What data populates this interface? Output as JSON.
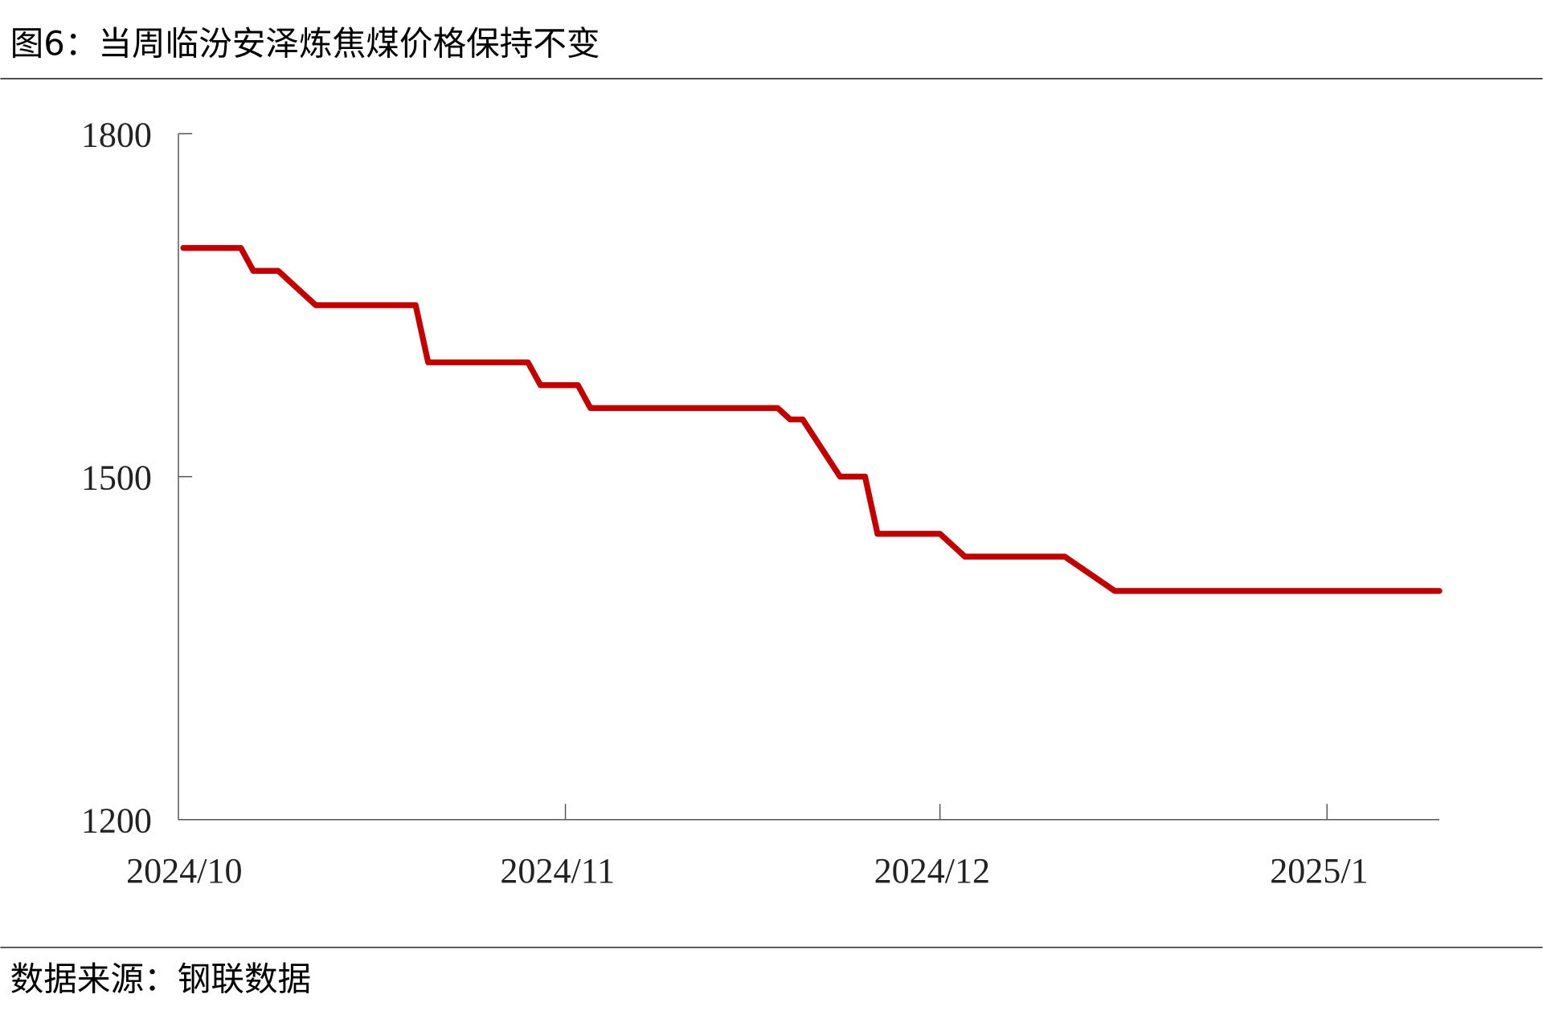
{
  "title": "图6：当周临汾安泽炼焦煤价格保持不变",
  "source": "数据来源：钢联数据",
  "chart_data": {
    "type": "line",
    "title": "图6：当周临汾安泽炼焦煤价格保持不变",
    "xlabel": "",
    "ylabel": "",
    "ylim": [
      1200,
      1800
    ],
    "yticks": [
      1800,
      1500,
      1200
    ],
    "xlim": [
      "2024-10-01",
      "2025-01-10"
    ],
    "xticks": [
      {
        "date": "2024-10-01",
        "label": "2024/10"
      },
      {
        "date": "2024-11-01",
        "label": "2024/11"
      },
      {
        "date": "2024-12-01",
        "label": "2024/12"
      },
      {
        "date": "2025-01-01",
        "label": "2025/1"
      }
    ],
    "grid": false,
    "series": [
      {
        "color": "#c00000",
        "points": [
          [
            "2024-10-01",
            1700
          ],
          [
            "2024-10-06",
            1700
          ],
          [
            "2024-10-07",
            1680
          ],
          [
            "2024-10-09",
            1680
          ],
          [
            "2024-10-12",
            1650
          ],
          [
            "2024-10-20",
            1650
          ],
          [
            "2024-10-21",
            1600
          ],
          [
            "2024-10-29",
            1600
          ],
          [
            "2024-10-30",
            1580
          ],
          [
            "2024-11-02",
            1580
          ],
          [
            "2024-11-03",
            1560
          ],
          [
            "2024-11-18",
            1560
          ],
          [
            "2024-11-19",
            1550
          ],
          [
            "2024-11-20",
            1550
          ],
          [
            "2024-11-23",
            1500
          ],
          [
            "2024-11-25",
            1500
          ],
          [
            "2024-11-26",
            1450
          ],
          [
            "2024-12-01",
            1450
          ],
          [
            "2024-12-03",
            1430
          ],
          [
            "2024-12-11",
            1430
          ],
          [
            "2024-12-15",
            1400
          ],
          [
            "2025-01-10",
            1400
          ]
        ]
      }
    ]
  }
}
